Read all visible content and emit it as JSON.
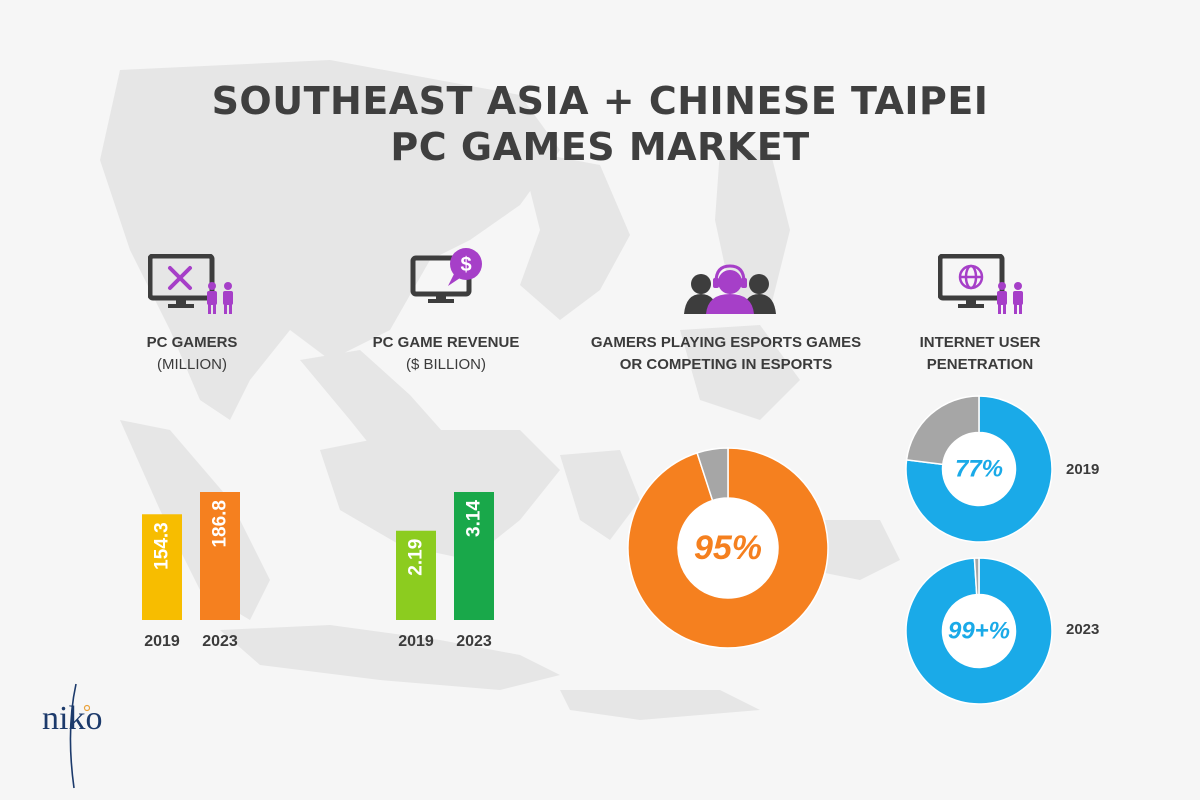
{
  "title": {
    "line1": "SOUTHEAST ASIA + CHINESE TAIPEI",
    "line2": "PC GAMES MARKET"
  },
  "logo": {
    "text": "niko"
  },
  "colors": {
    "purple": "#a63fc8",
    "dark_icon": "#3d3d3d",
    "yellow": "#f7bd00",
    "orange": "#f5801f",
    "lime": "#8ccc1f",
    "green": "#19a84a",
    "blue": "#1aaae8",
    "gray": "#a6a6a6",
    "map": "#e5e5e5"
  },
  "icons": {
    "pc_gamers": "monitor-with-swords-and-people-icon",
    "pc_revenue": "monitor-with-dollar-bubble-icon",
    "esports": "headset-gamer-group-icon",
    "internet": "monitor-with-globe-and-people-icon"
  },
  "sections": {
    "pc_gamers": {
      "label": "PC GAMERS",
      "sub": "(MILLION)"
    },
    "pc_revenue": {
      "label": "PC GAME REVENUE",
      "sub": "($ BILLION)"
    },
    "esports": {
      "label_line1": "GAMERS PLAYING ESPORTS GAMES",
      "label_line2": "OR COMPETING IN ESPORTS"
    },
    "internet": {
      "label_line1": "INTERNET USER",
      "label_line2": "PENETRATION"
    }
  },
  "chart_data": [
    {
      "type": "bar",
      "title": "PC GAMERS (MILLION)",
      "categories": [
        "2019",
        "2023"
      ],
      "values": [
        154.3,
        186.8
      ],
      "value_labels": [
        "154.3",
        "186.8"
      ],
      "colors": [
        "#f7bd00",
        "#f5801f"
      ]
    },
    {
      "type": "bar",
      "title": "PC GAME REVENUE ($ BILLION)",
      "categories": [
        "2019",
        "2023"
      ],
      "values": [
        2.19,
        3.14
      ],
      "value_labels": [
        "2.19",
        "3.14"
      ],
      "colors": [
        "#8ccc1f",
        "#19a84a"
      ]
    },
    {
      "type": "pie",
      "title": "GAMERS PLAYING ESPORTS GAMES OR COMPETING IN ESPORTS",
      "value": 95,
      "value_label": "95%",
      "colors": [
        "#f5801f",
        "#a6a6a6"
      ]
    },
    {
      "type": "pie",
      "title": "INTERNET USER PENETRATION",
      "series": [
        {
          "year": "2019",
          "value": 77,
          "value_label": "77%"
        },
        {
          "year": "2023",
          "value": 99,
          "value_label": "99+%"
        }
      ],
      "colors": [
        "#1aaae8",
        "#a6a6a6"
      ]
    }
  ]
}
